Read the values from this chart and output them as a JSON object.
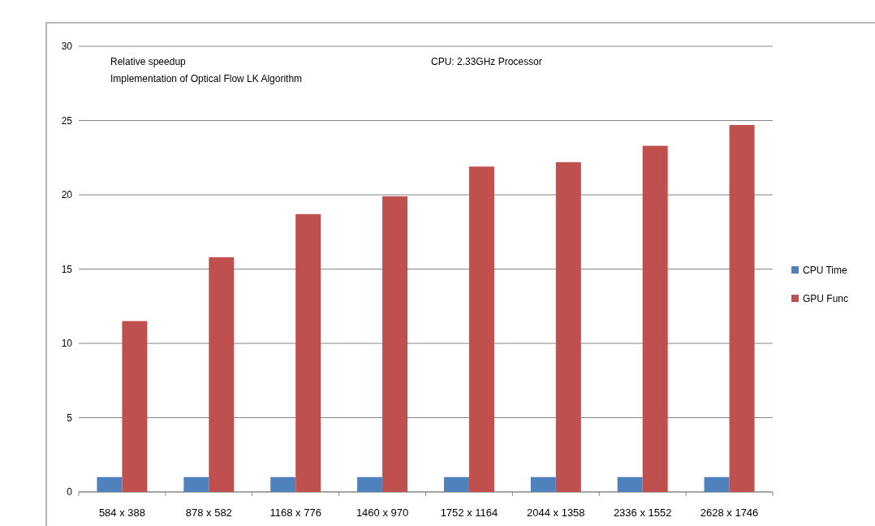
{
  "chart_data": {
    "type": "bar",
    "categories": [
      "584 x 388",
      "878 x 582",
      "1168 x 776",
      "1460 x 970",
      "1752 x 1164",
      "2044 x 1358",
      "2336 x 1552",
      "2628 x 1746"
    ],
    "series": [
      {
        "name": "CPU Time",
        "color": "#4f81bd",
        "values": [
          1,
          1,
          1,
          1,
          1,
          1,
          1,
          1
        ]
      },
      {
        "name": "GPU Func",
        "color": "#c0504d",
        "values": [
          11.5,
          15.8,
          18.7,
          19.9,
          21.9,
          22.2,
          23.3,
          24.7
        ]
      }
    ],
    "ylim": [
      0,
      30
    ],
    "yticks": [
      0,
      5,
      10,
      15,
      20,
      25,
      30
    ],
    "grid": "y",
    "legend": "right",
    "annotations": [
      "Relative speedup\nImplementation of Optical Flow LK Algorithm",
      "CPU:  2.33GHz Processor"
    ]
  }
}
